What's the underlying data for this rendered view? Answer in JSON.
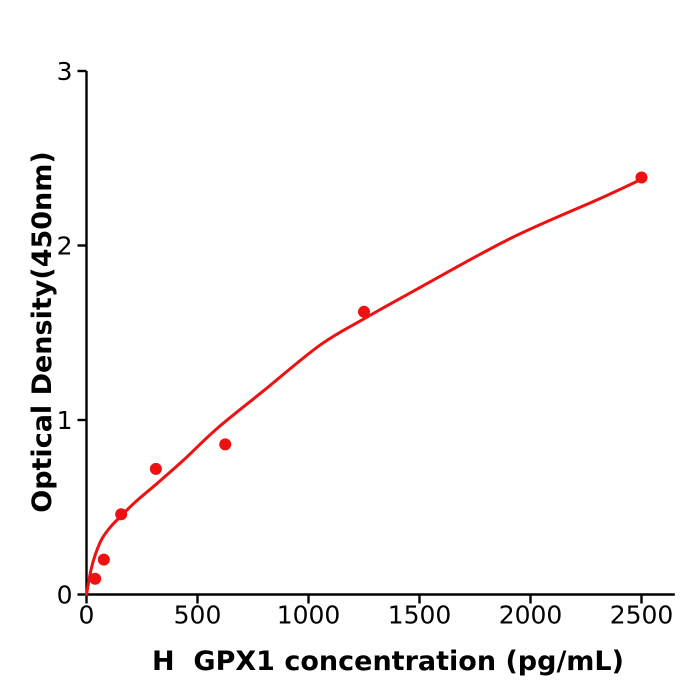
{
  "figure": {
    "background": "#ffffff"
  },
  "colors": {
    "series_red": "#ee1111",
    "axis_black": "#000000"
  },
  "chart_data": {
    "type": "scatter",
    "title": "",
    "xlabel": "H  GPX1 concentration (pg/mL)",
    "ylabel": "Optical Density(450nm)",
    "xlim": [
      0,
      2650
    ],
    "ylim": [
      0,
      3
    ],
    "x_ticks": [
      0,
      500,
      1000,
      1500,
      2000,
      2500
    ],
    "y_ticks": [
      0,
      1,
      2,
      3
    ],
    "grid": false,
    "legend": "none",
    "series": [
      {
        "name": "standard-points",
        "type": "scatter",
        "color": "#ee1111",
        "marker_radius": 6,
        "x": [
          39.06,
          78.13,
          156.25,
          312.5,
          625,
          1250,
          2500
        ],
        "y": [
          0.09,
          0.2,
          0.46,
          0.72,
          0.86,
          1.62,
          2.39
        ]
      },
      {
        "name": "fitted-curve",
        "type": "line",
        "color": "#ee1111",
        "stroke_width": 3,
        "points": [
          [
            0,
            0
          ],
          [
            20,
            0.14
          ],
          [
            40,
            0.23
          ],
          [
            70,
            0.32
          ],
          [
            110,
            0.39
          ],
          [
            156,
            0.45
          ],
          [
            220,
            0.53
          ],
          [
            312,
            0.63
          ],
          [
            437,
            0.77
          ],
          [
            587,
            0.95
          ],
          [
            800,
            1.17
          ],
          [
            1053,
            1.43
          ],
          [
            1250,
            1.58
          ],
          [
            1503,
            1.76
          ],
          [
            1909,
            2.04
          ],
          [
            2315,
            2.27
          ],
          [
            2500,
            2.38
          ]
        ]
      }
    ]
  }
}
